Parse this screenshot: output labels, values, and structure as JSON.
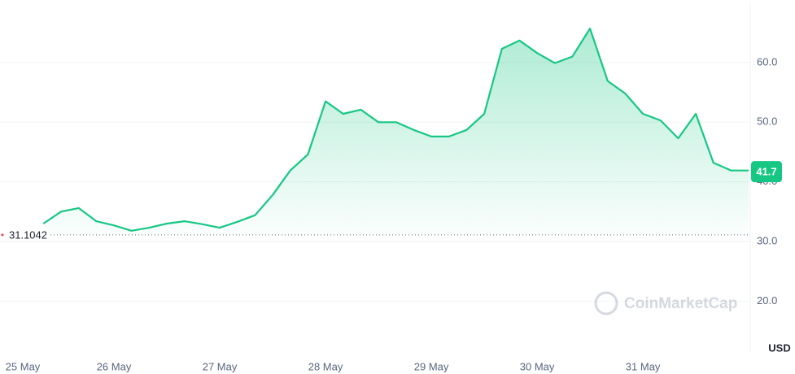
{
  "chart_data": {
    "type": "line",
    "categories": [
      "25 May",
      null,
      null,
      null,
      null,
      null,
      "26 May",
      null,
      null,
      null,
      null,
      null,
      "27 May",
      null,
      null,
      null,
      null,
      null,
      "28 May",
      null,
      null,
      null,
      null,
      null,
      "29 May",
      null,
      null,
      null,
      null,
      null,
      "30 May",
      null,
      null,
      null,
      null,
      null,
      "31 May",
      null,
      null,
      null,
      null,
      null,
      null
    ],
    "values": [
      null,
      null,
      33.0,
      35.0,
      35.6,
      33.4,
      32.7,
      31.8,
      32.3,
      33.0,
      33.4,
      32.9,
      32.3,
      33.3,
      34.4,
      37.8,
      41.9,
      44.6,
      53.5,
      51.4,
      52.1,
      50.0,
      50.0,
      48.7,
      47.6,
      47.6,
      48.7,
      51.4,
      62.3,
      63.7,
      61.6,
      59.9,
      61.0,
      65.7,
      56.9,
      54.8,
      51.4,
      50.3,
      47.3,
      51.4,
      43.2,
      41.9,
      41.9
    ],
    "color": "#16c784",
    "ylim": [
      11.6,
      69.8
    ],
    "yticks": [
      {
        "value": 20,
        "label": "20.0"
      },
      {
        "value": 30,
        "label": "30.0"
      },
      {
        "value": 40,
        "label": "40.0"
      },
      {
        "value": 50,
        "label": "50.0"
      },
      {
        "value": 60,
        "label": "60.0"
      }
    ],
    "grid": true,
    "reference_line": 31.1042,
    "last_price": 41.7,
    "currency": "USD",
    "watermark": "CoinMarketCap"
  }
}
